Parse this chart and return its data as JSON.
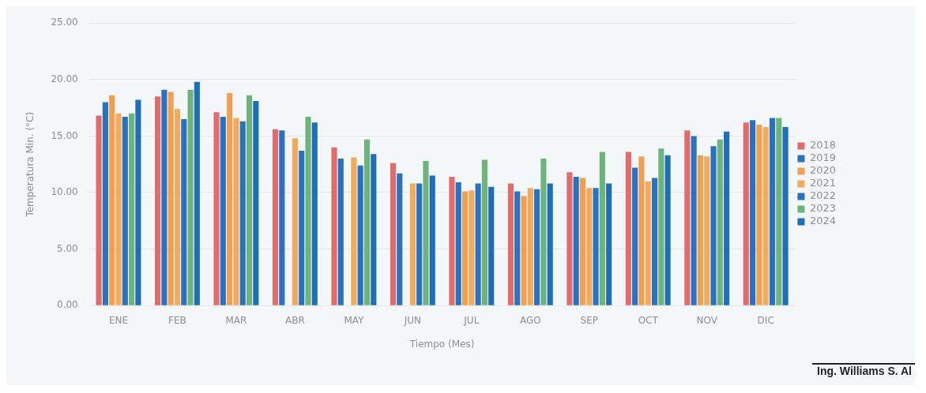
{
  "chart_data": {
    "type": "bar",
    "xlabel": "Tiempo (Mes)",
    "ylabel": "Temperatura Min. (°C)",
    "categories": [
      "ENE",
      "FEB",
      "MAR",
      "ABR",
      "MAY",
      "JUN",
      "JUL",
      "AGO",
      "SEP",
      "OCT",
      "NOV",
      "DIC"
    ],
    "series": [
      {
        "name": "2018",
        "color": "#e06c6c",
        "values": [
          16.8,
          18.5,
          17.1,
          15.6,
          14.0,
          12.6,
          11.4,
          10.8,
          11.8,
          13.6,
          15.5,
          16.2
        ]
      },
      {
        "name": "2019",
        "color": "#2a72c0",
        "values": [
          18.0,
          19.1,
          16.7,
          15.5,
          13.0,
          11.7,
          10.9,
          10.1,
          11.4,
          12.2,
          15.0,
          16.4
        ]
      },
      {
        "name": "2020",
        "color": "#f0a050",
        "values": [
          18.6,
          18.9,
          18.8,
          null,
          null,
          null,
          10.1,
          9.7,
          11.3,
          13.2,
          13.3,
          16.0
        ]
      },
      {
        "name": "2021",
        "color": "#f2aa5c",
        "values": [
          17.0,
          17.4,
          16.6,
          14.8,
          13.1,
          10.8,
          10.2,
          10.4,
          10.4,
          11.0,
          13.2,
          15.8
        ]
      },
      {
        "name": "2022",
        "color": "#2a72c0",
        "values": [
          16.7,
          16.5,
          16.3,
          13.7,
          12.4,
          10.8,
          10.8,
          10.3,
          10.4,
          11.3,
          14.1,
          16.6
        ]
      },
      {
        "name": "2023",
        "color": "#6cb47c",
        "values": [
          17.0,
          19.1,
          18.6,
          16.7,
          14.7,
          12.8,
          12.9,
          13.0,
          13.6,
          13.9,
          14.7,
          16.6
        ]
      },
      {
        "name": "2024",
        "color": "#1f6fb8",
        "values": [
          18.2,
          19.8,
          18.1,
          16.2,
          13.4,
          11.5,
          10.5,
          10.8,
          10.8,
          13.3,
          15.4,
          15.8
        ]
      }
    ],
    "ylim": [
      0,
      25
    ],
    "yticks": [
      {
        "value": 0,
        "label": "0.00"
      },
      {
        "value": 5,
        "label": "5.00"
      },
      {
        "value": 10,
        "label": "10.00"
      },
      {
        "value": 15,
        "label": "15.00"
      },
      {
        "value": 20,
        "label": "20.00"
      },
      {
        "value": 25,
        "label": "25.00"
      }
    ],
    "grid": "y",
    "legend": "right",
    "annotations": [
      "Ing. Williams S. Al"
    ]
  }
}
